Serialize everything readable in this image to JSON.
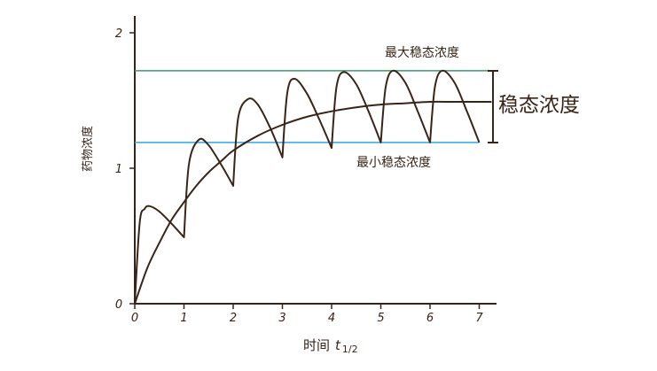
{
  "chart_data": {
    "type": "line",
    "title": "",
    "xlabel": "时间",
    "xlabel_sub": "t",
    "xlabel_subscript": "1/2",
    "ylabel": "药物浓度",
    "xlim": [
      0,
      7.3
    ],
    "ylim": [
      0,
      2.1
    ],
    "x_ticks": [
      0,
      1,
      2,
      3,
      4,
      5,
      6,
      7
    ],
    "y_ticks": [
      0,
      1,
      2
    ],
    "grid": false,
    "series": [
      {
        "description_role": "repeated-dose",
        "color": "#3a2418",
        "points": [
          [
            0,
            0
          ],
          [
            0.1,
            0.6
          ],
          [
            0.2,
            0.7
          ],
          [
            0.3,
            0.72
          ],
          [
            0.5,
            0.68
          ],
          [
            0.75,
            0.59
          ],
          [
            1.0,
            0.49
          ],
          [
            1.0,
            0.49
          ],
          [
            1.1,
            1.03
          ],
          [
            1.3,
            1.21
          ],
          [
            1.5,
            1.17
          ],
          [
            1.75,
            1.03
          ],
          [
            2.0,
            0.87
          ],
          [
            2.0,
            0.87
          ],
          [
            2.1,
            1.37
          ],
          [
            2.3,
            1.51
          ],
          [
            2.5,
            1.47
          ],
          [
            2.75,
            1.3
          ],
          [
            3.0,
            1.08
          ],
          [
            3.0,
            1.08
          ],
          [
            3.1,
            1.56
          ],
          [
            3.25,
            1.66
          ],
          [
            3.5,
            1.55
          ],
          [
            3.75,
            1.36
          ],
          [
            4.0,
            1.15
          ],
          [
            4.0,
            1.15
          ],
          [
            4.1,
            1.6
          ],
          [
            4.25,
            1.71
          ],
          [
            4.5,
            1.62
          ],
          [
            4.75,
            1.42
          ],
          [
            5.0,
            1.19
          ],
          [
            5.0,
            1.19
          ],
          [
            5.1,
            1.6
          ],
          [
            5.25,
            1.72
          ],
          [
            5.5,
            1.63
          ],
          [
            5.75,
            1.42
          ],
          [
            6.0,
            1.19
          ],
          [
            6.0,
            1.19
          ],
          [
            6.1,
            1.6
          ],
          [
            6.25,
            1.72
          ],
          [
            6.5,
            1.63
          ],
          [
            6.75,
            1.42
          ],
          [
            7.0,
            1.19
          ]
        ]
      },
      {
        "description_role": "infusion",
        "color": "#3a2418",
        "points": [
          [
            0,
            0
          ],
          [
            0.25,
            0.26
          ],
          [
            0.5,
            0.45
          ],
          [
            0.75,
            0.62
          ],
          [
            1.0,
            0.75
          ],
          [
            1.25,
            0.87
          ],
          [
            1.5,
            0.97
          ],
          [
            1.75,
            1.05
          ],
          [
            2.0,
            1.13
          ],
          [
            2.5,
            1.24
          ],
          [
            3.0,
            1.32
          ],
          [
            3.5,
            1.38
          ],
          [
            4.0,
            1.42
          ],
          [
            4.5,
            1.45
          ],
          [
            5.0,
            1.47
          ],
          [
            5.5,
            1.48
          ],
          [
            6.0,
            1.49
          ],
          [
            6.5,
            1.49
          ],
          [
            7.25,
            1.49
          ]
        ]
      }
    ],
    "reference_lines": [
      {
        "label": "最大稳态浓度",
        "y": 1.72,
        "x_range": [
          0,
          7.25
        ],
        "color": "#3a9a6e"
      },
      {
        "label": "最小稳态浓度",
        "y": 1.19,
        "x_range": [
          0,
          7.0
        ],
        "color": "#2ea8e0"
      }
    ],
    "annotations": [
      {
        "label": "稳态浓度",
        "y_range": [
          1.19,
          1.72
        ]
      }
    ]
  }
}
